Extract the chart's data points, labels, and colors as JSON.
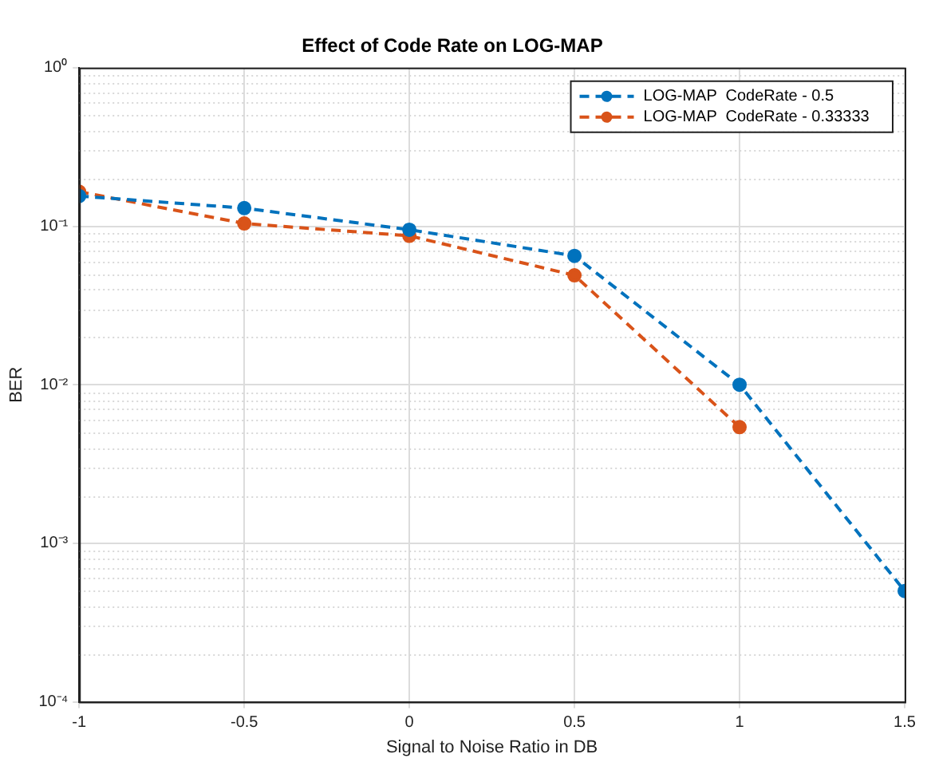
{
  "chart_data": {
    "type": "line",
    "title": "Effect of Code Rate on LOG-MAP",
    "xlabel": "Signal to Noise Ratio in DB",
    "ylabel": "BER",
    "log": "y",
    "grid": true,
    "legend": "top right",
    "marker": "circle",
    "line_style": "dashed",
    "xlim": [
      -1,
      1.5
    ],
    "xticks": [
      -1,
      -0.5,
      0,
      0.5,
      1,
      1.5
    ],
    "ylim": [
      0.0001,
      1
    ],
    "yticks": [
      {
        "value": 0.0001,
        "label": "10⁻⁴"
      },
      {
        "value": 0.001,
        "label": "10⁻³"
      },
      {
        "value": 0.01,
        "label": "10⁻²"
      },
      {
        "value": 0.1,
        "label": "10⁻¹"
      },
      {
        "value": 1,
        "label": "10⁰"
      }
    ],
    "series": [
      {
        "name": "LOG-MAP  CodeRate - 0.5",
        "color": "#0072bd",
        "x": [
          -1,
          -0.5,
          0,
          0.5,
          1,
          1.5
        ],
        "values": [
          0.155,
          0.13,
          0.095,
          0.065,
          0.01,
          0.0005
        ]
      },
      {
        "name": "LOG-MAP  CodeRate - 0.33333",
        "color": "#d95319",
        "x": [
          -1,
          -0.5,
          0,
          0.5,
          1
        ],
        "values": [
          0.165,
          0.104,
          0.087,
          0.049,
          0.0054
        ]
      }
    ]
  }
}
